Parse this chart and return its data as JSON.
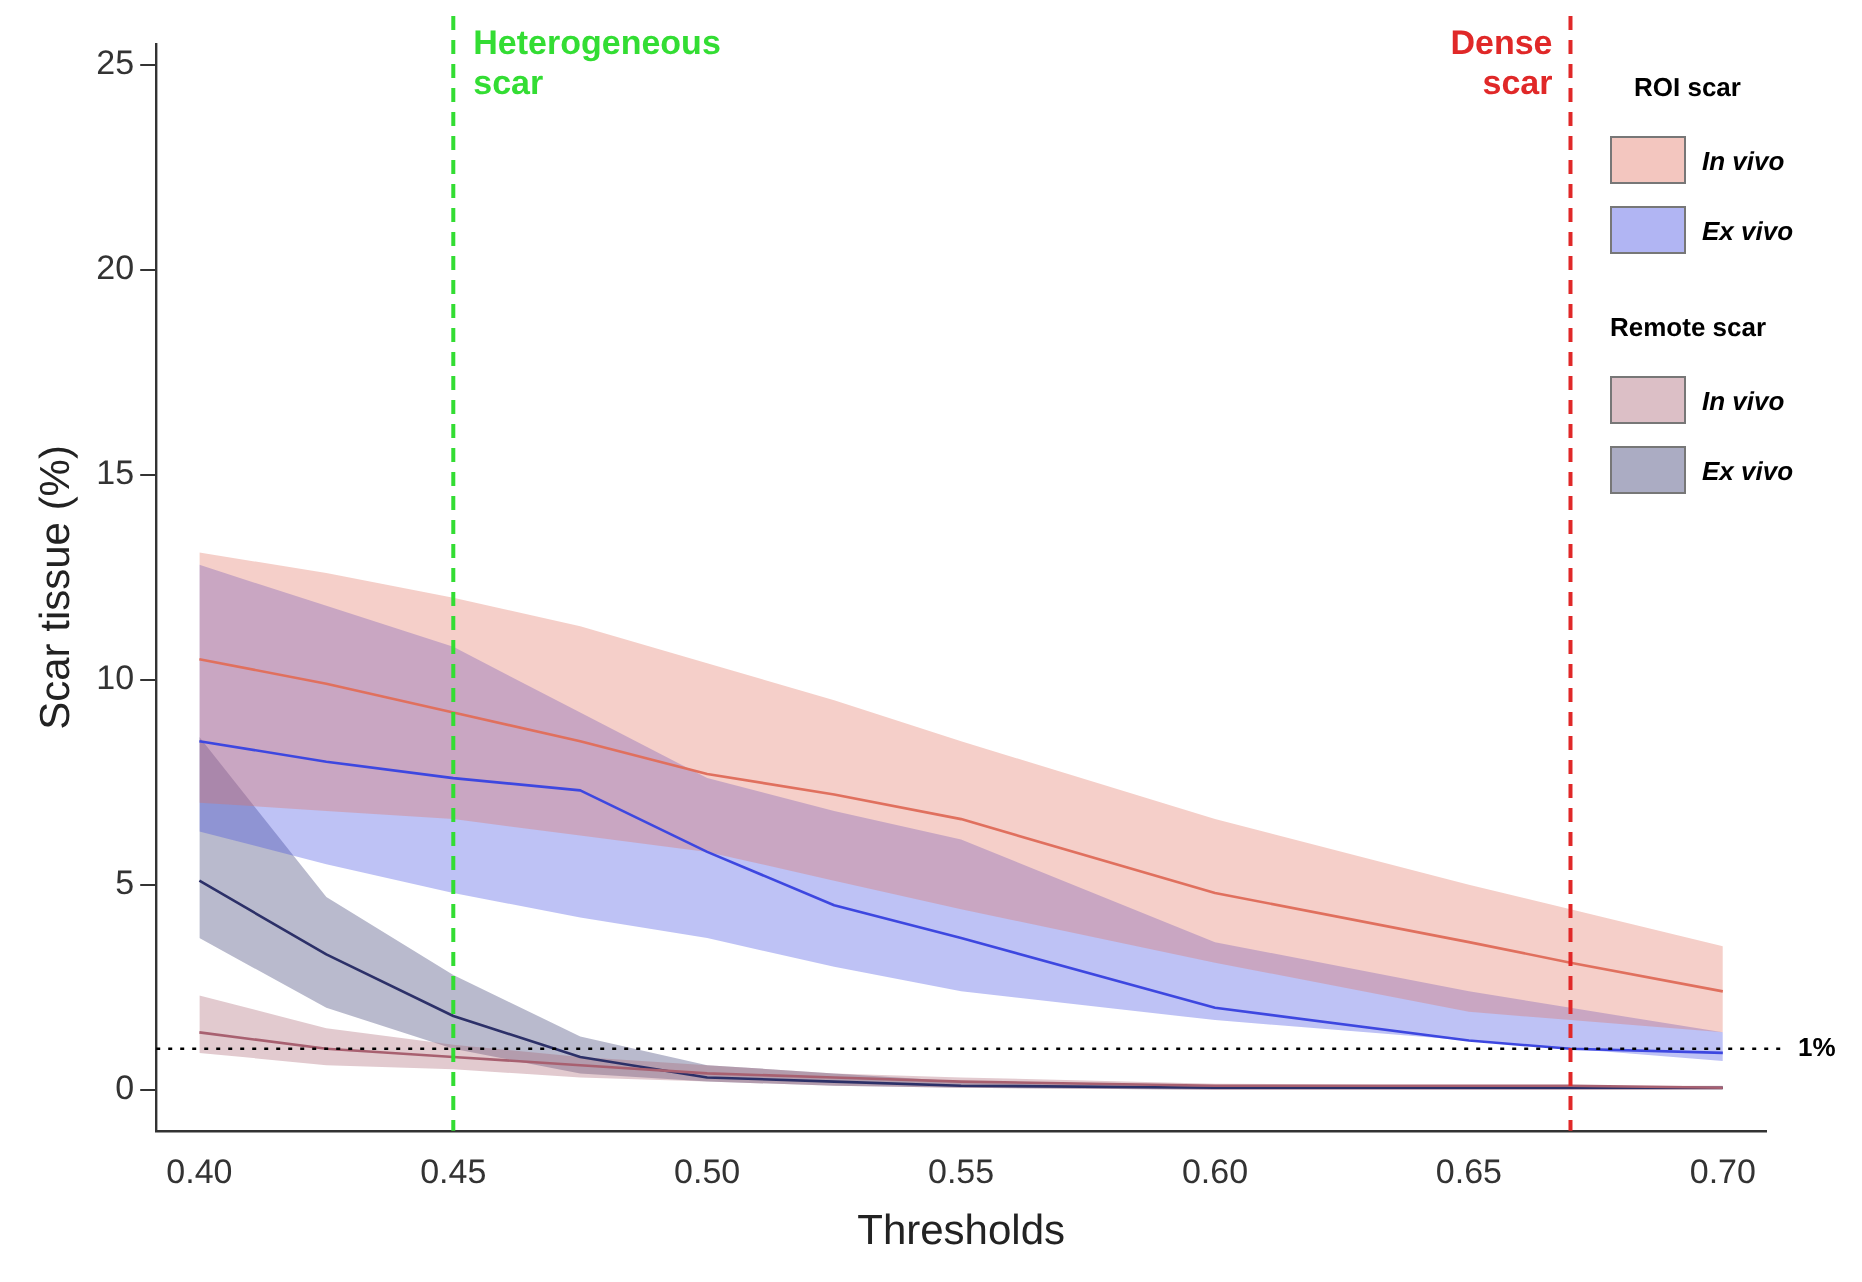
{
  "chart_data": {
    "type": "line",
    "xlabel": "Thresholds",
    "ylabel": "Scar tissue (%)",
    "x": [
      0.4,
      0.425,
      0.45,
      0.475,
      0.5,
      0.525,
      0.55,
      0.6,
      0.65,
      0.67,
      0.7
    ],
    "xlim": [
      0.3915,
      0.7085
    ],
    "xticks": [
      {
        "value": 0.4,
        "label": "0.40"
      },
      {
        "value": 0.45,
        "label": "0.45"
      },
      {
        "value": 0.5,
        "label": "0.50"
      },
      {
        "value": 0.55,
        "label": "0.55"
      },
      {
        "value": 0.6,
        "label": "0.60"
      },
      {
        "value": 0.65,
        "label": "0.65"
      },
      {
        "value": 0.7,
        "label": "0.70"
      }
    ],
    "ylim": [
      -1,
      25.5
    ],
    "yticks": [
      0,
      5,
      10,
      15,
      20,
      25
    ],
    "legend": "top right",
    "legend_title": [
      "ROI scar",
      "Remote scar"
    ],
    "series": [
      {
        "name": "In vivo",
        "color": "#e0705e",
        "values": [
          10.5,
          9.9,
          9.2,
          8.5,
          7.7,
          7.2,
          6.6,
          4.8,
          3.6,
          3.1,
          2.4
        ],
        "upper": [
          13.1,
          12.6,
          12.0,
          11.3,
          10.4,
          9.5,
          8.5,
          6.6,
          5.0,
          4.4,
          3.5
        ],
        "lower": [
          7.0,
          6.8,
          6.6,
          6.2,
          5.8,
          5.1,
          4.4,
          3.1,
          1.9,
          1.7,
          1.4
        ]
      },
      {
        "name": "Ex vivo",
        "color": "#3d47e0",
        "values": [
          8.5,
          8.0,
          7.6,
          7.3,
          5.8,
          4.5,
          3.7,
          2.0,
          1.2,
          1.0,
          0.9
        ],
        "upper": [
          12.8,
          11.8,
          10.8,
          9.2,
          7.6,
          6.8,
          6.1,
          3.6,
          2.4,
          2.0,
          1.4
        ],
        "lower": [
          6.3,
          5.5,
          4.8,
          4.2,
          3.7,
          3.0,
          2.4,
          1.7,
          1.2,
          1.0,
          0.7
        ]
      },
      {
        "name": "In vivo",
        "color": "#a86070",
        "values": [
          1.4,
          1.0,
          0.8,
          0.6,
          0.4,
          0.3,
          0.2,
          0.1,
          0.1,
          0.1,
          0.05
        ],
        "upper": [
          2.3,
          1.5,
          1.1,
          0.8,
          0.6,
          0.4,
          0.3,
          0.15,
          0.1,
          0.1,
          0.1
        ],
        "lower": [
          0.9,
          0.6,
          0.5,
          0.3,
          0.2,
          0.1,
          0.05,
          0,
          0,
          0,
          0
        ]
      },
      {
        "name": "Ex vivo",
        "color": "#2c3068",
        "values": [
          5.1,
          3.3,
          1.8,
          0.8,
          0.3,
          0.2,
          0.1,
          0.05,
          0.05,
          0.05,
          0.05
        ],
        "upper": [
          8.6,
          4.7,
          2.8,
          1.3,
          0.6,
          0.4,
          0.2,
          0.1,
          0.05,
          0.05,
          0.05
        ],
        "lower": [
          3.7,
          2.0,
          1.0,
          0.4,
          0.2,
          0.1,
          0.05,
          0,
          0,
          0,
          0
        ]
      }
    ],
    "ref_lines": [
      {
        "axis": "x",
        "value": 0.45,
        "label": "Heterogeneous scar",
        "color": "#33dd33",
        "line_style": "dashed"
      },
      {
        "axis": "x",
        "value": 0.67,
        "label": "Dense scar",
        "color": "#e02828",
        "line_style": "dashed"
      },
      {
        "axis": "y",
        "value": 1,
        "label": "1%",
        "color": "#000000",
        "line_style": "dotted"
      }
    ]
  }
}
